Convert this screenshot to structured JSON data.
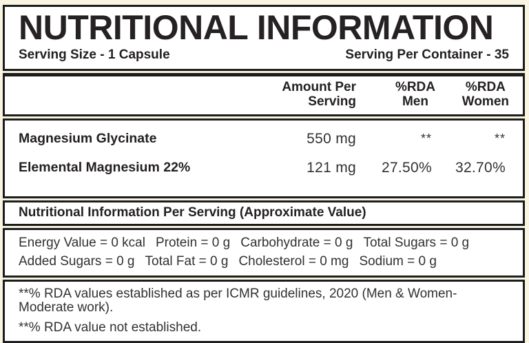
{
  "header": {
    "title": "NUTRITIONAL INFORMATION",
    "serving_size": "Serving Size - 1 Capsule",
    "serving_per_container": "Serving Per Container - 35"
  },
  "table": {
    "columns": {
      "amount_line1": "Amount Per",
      "amount_line2": "Serving",
      "rda_men_line1": "%RDA",
      "rda_men_line2": "Men",
      "rda_women_line1": "%RDA",
      "rda_women_line2": "Women"
    },
    "rows": [
      {
        "name": "Magnesium Glycinate",
        "amount": "550 mg",
        "rda_men": "**",
        "rda_women": "**"
      },
      {
        "name": "Elemental Magnesium 22%",
        "amount": "121 mg",
        "rda_men": "27.50%",
        "rda_women": "32.70%"
      }
    ]
  },
  "per_serving": {
    "heading": "Nutritional Information Per Serving (Approximate Value)",
    "line1": [
      "Energy Value = 0 kcal",
      "Protein = 0 g",
      "Carbohydrate = 0 g",
      "Total Sugars = 0 g"
    ],
    "line2": [
      "Added Sugars = 0 g",
      "Total Fat = 0 g",
      "Cholesterol = 0 mg",
      "Sodium = 0 g"
    ]
  },
  "footnotes": [
    "**% RDA values established as per ICMR guidelines, 2020 (Men & Women-Moderate work).",
    "**% RDA value not established."
  ],
  "colors": {
    "background": "#f9f5e2",
    "panel": "#ffffff",
    "border": "#1c1c1c",
    "text": "#231f20"
  }
}
